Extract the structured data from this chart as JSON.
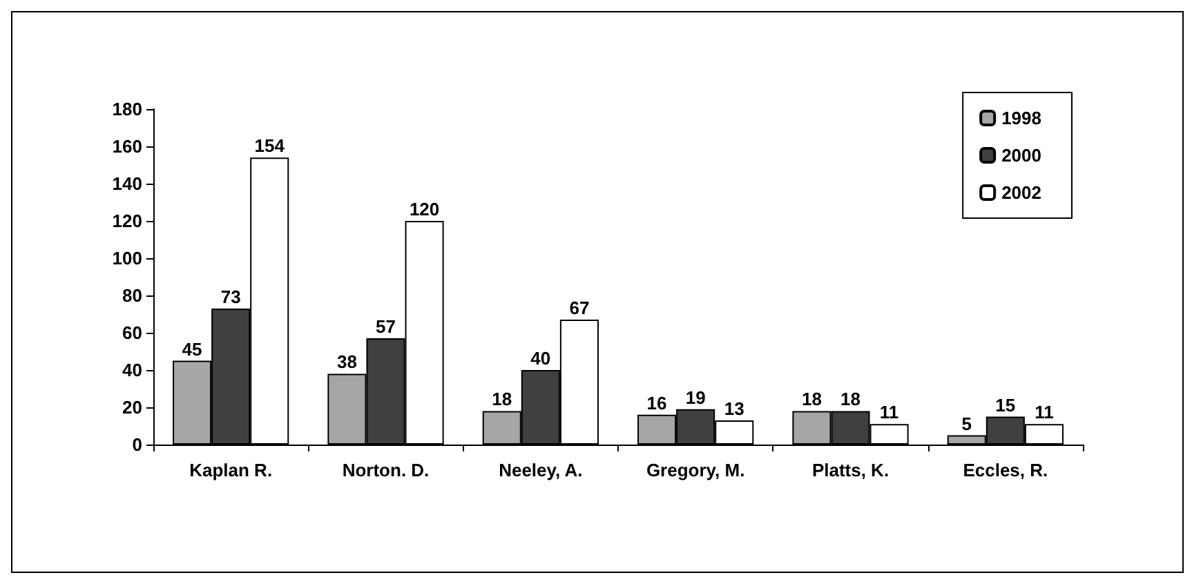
{
  "chart_data": {
    "type": "bar",
    "categories": [
      "Kaplan R.",
      "Norton. D.",
      "Neeley, A.",
      "Gregory, M.",
      "Platts, K.",
      "Eccles, R."
    ],
    "series": [
      {
        "name": "1998",
        "color": "#a6a6a6",
        "values": [
          45,
          38,
          18,
          16,
          18,
          5
        ]
      },
      {
        "name": "2000",
        "color": "#404040",
        "values": [
          73,
          57,
          40,
          19,
          18,
          15
        ]
      },
      {
        "name": "2002",
        "color": "#ffffff",
        "values": [
          154,
          120,
          67,
          13,
          11,
          11
        ]
      }
    ],
    "ylim": [
      0,
      180
    ],
    "yticks": [
      0,
      20,
      40,
      60,
      80,
      100,
      120,
      140,
      160,
      180
    ],
    "grid": false,
    "legend": "top right",
    "data_labels": true
  }
}
